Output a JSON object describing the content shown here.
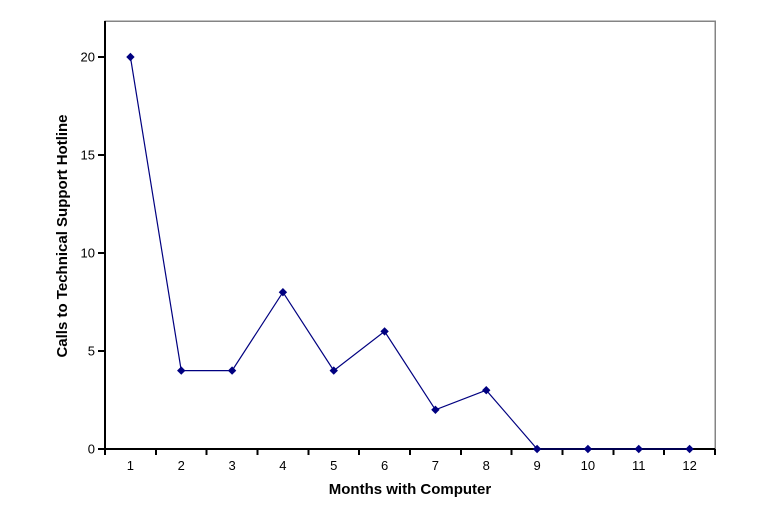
{
  "chart_data": {
    "type": "line",
    "title": "",
    "xlabel": "Months with Computer",
    "ylabel": "Calls to Technical Support Hotline",
    "categories": [
      "1",
      "2",
      "3",
      "4",
      "5",
      "6",
      "7",
      "8",
      "9",
      "10",
      "11",
      "12"
    ],
    "series": [
      {
        "name": "Calls to Technical Support Hotline",
        "values": [
          20,
          4,
          4,
          8,
          4,
          6,
          2,
          3,
          0,
          0,
          0,
          0
        ]
      }
    ],
    "yticks": [
      0,
      5,
      10,
      15,
      20
    ],
    "ylim": [
      0,
      20
    ],
    "xlim_categories": [
      1,
      12
    ],
    "grid": false,
    "legend_position": "none",
    "marker": "diamond",
    "colors": {
      "line": "#000080",
      "marker": "#000080",
      "axis": "#000000",
      "plot_border": "#848484",
      "background": "#ffffff",
      "text": "#000000"
    }
  }
}
